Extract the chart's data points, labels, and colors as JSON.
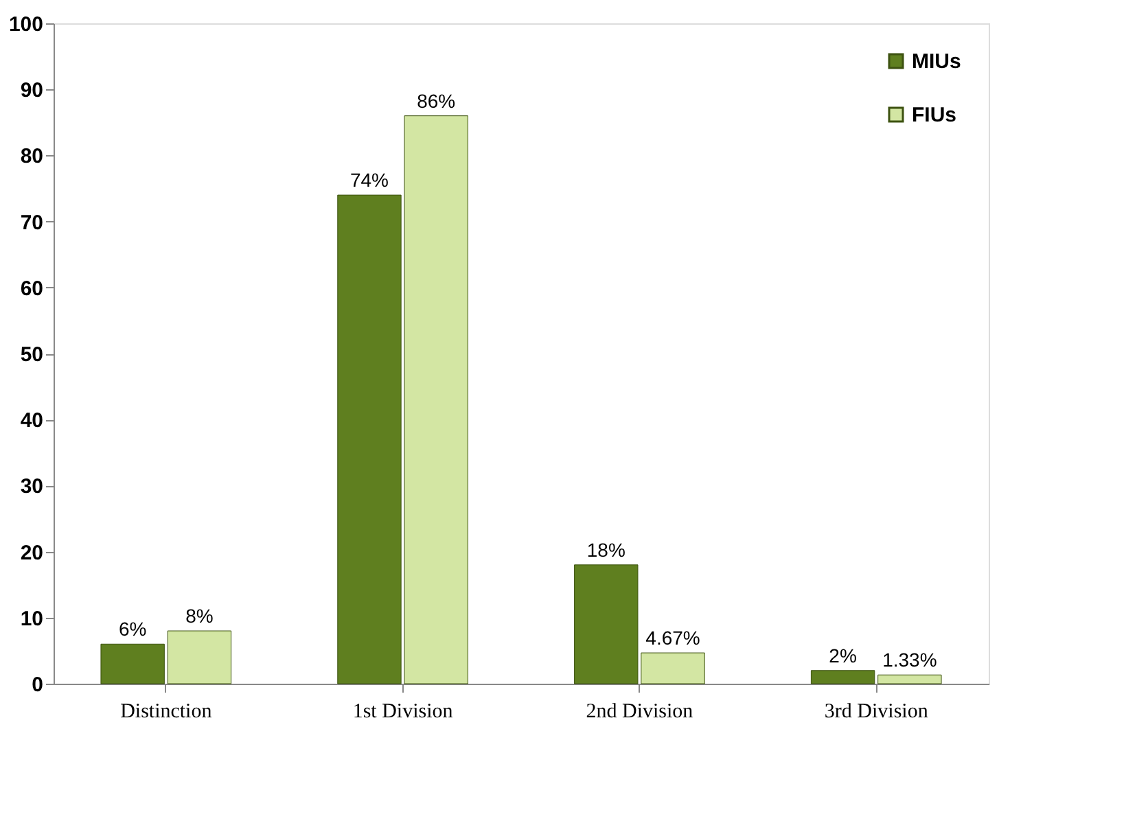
{
  "chart_data": {
    "type": "bar",
    "categories": [
      "Distinction",
      "1st Division",
      "2nd Division",
      "3rd Division"
    ],
    "series": [
      {
        "name": "MIUs",
        "color": "#5f7f1f",
        "values": [
          6,
          74,
          18,
          2
        ],
        "value_labels": [
          "6%",
          "74%",
          "18%",
          "2%"
        ]
      },
      {
        "name": "FIUs",
        "color": "#d3e6a3",
        "values": [
          8,
          86,
          4.67,
          1.33
        ],
        "value_labels": [
          "8%",
          "86%",
          "4.67%",
          "1.33%"
        ]
      }
    ],
    "ylim": [
      0,
      100
    ],
    "yticks": [
      0,
      10,
      20,
      30,
      40,
      50,
      60,
      70,
      80,
      90,
      100
    ],
    "grid": false,
    "legend": "top right"
  }
}
